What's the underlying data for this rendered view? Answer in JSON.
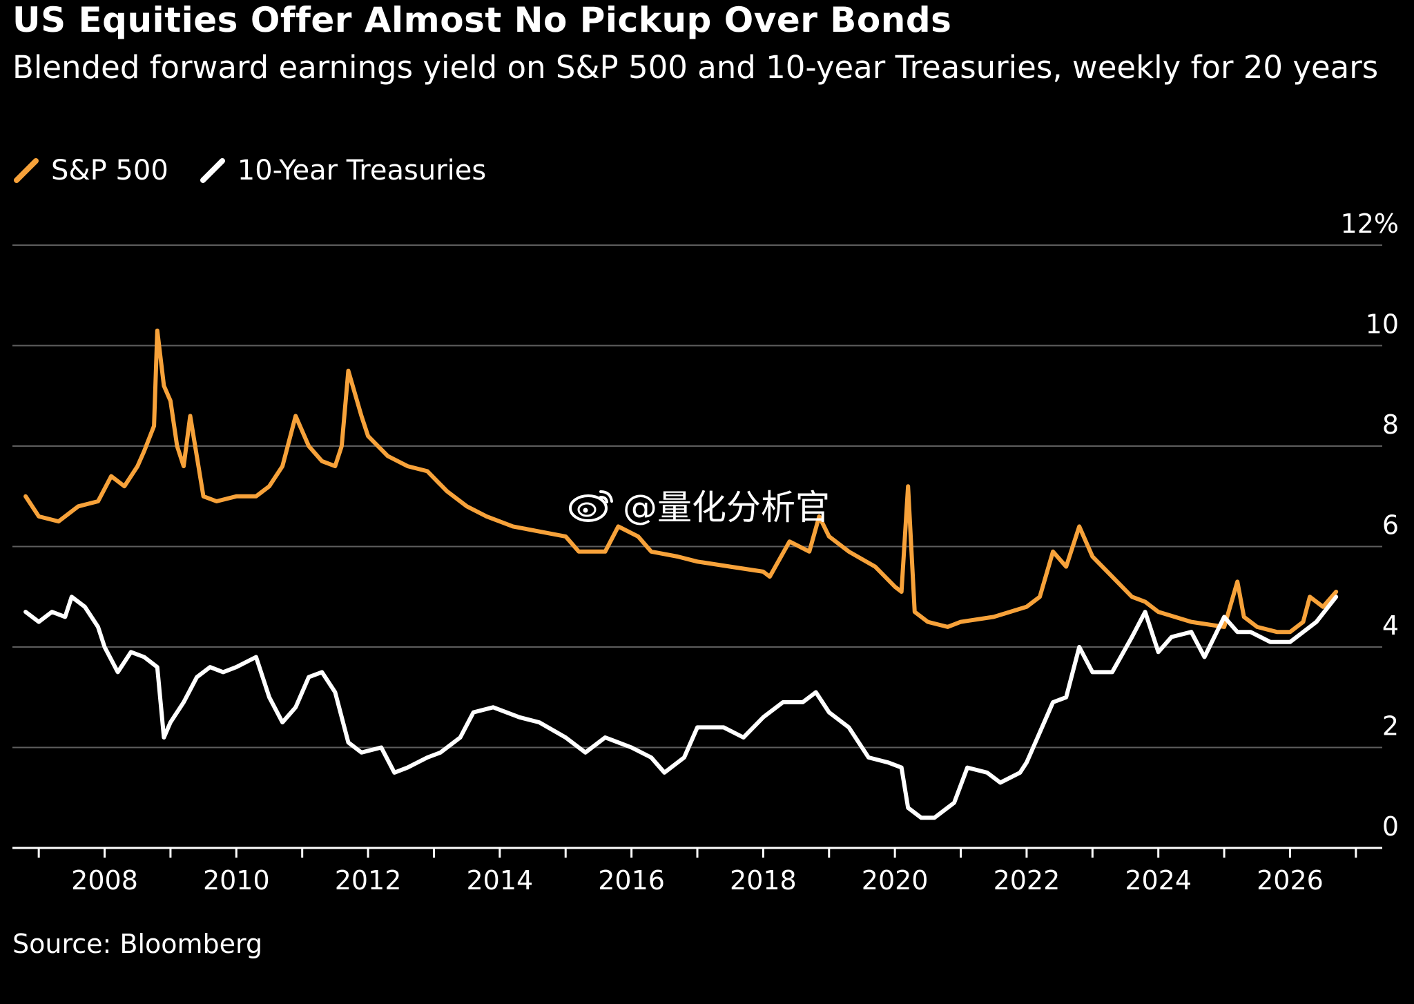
{
  "header": {
    "title": "US Equities Offer Almost No Pickup Over Bonds",
    "subtitle": "Blended forward earnings yield on S&P 500 and 10-year Treasuries, weekly for 20 years"
  },
  "legend": [
    {
      "label": "S&P 500",
      "color": "#f7a23a"
    },
    {
      "label": "10-Year Treasuries",
      "color": "#ffffff"
    }
  ],
  "source": "Source: Bloomberg",
  "watermark": {
    "text": "@量化分析官",
    "icon": "weibo-icon"
  },
  "chart_data": {
    "type": "line",
    "title": "US Equities Offer Almost No Pickup Over Bonds",
    "subtitle": "Blended forward earnings yield on S&P 500 and 10-year Treasuries, weekly for 20 years",
    "xlabel": "",
    "ylabel": "",
    "xlim": [
      2006.6,
      2027.4
    ],
    "ylim": [
      0,
      12
    ],
    "x_ticks": [
      2008,
      2010,
      2012,
      2014,
      2016,
      2018,
      2020,
      2022,
      2024,
      2026
    ],
    "y_ticks": [
      0,
      2,
      4,
      6,
      8,
      10,
      12
    ],
    "y_tick_labels": [
      "0",
      "2",
      "4",
      "6",
      "8",
      "10",
      "12%"
    ],
    "grid": true,
    "legend_position": "top-left",
    "series": [
      {
        "name": "S&P 500",
        "color": "#f7a23a",
        "x": [
          2006.8,
          2007.0,
          2007.3,
          2007.6,
          2007.9,
          2008.1,
          2008.3,
          2008.5,
          2008.6,
          2008.75,
          2008.8,
          2008.9,
          2009.0,
          2009.1,
          2009.2,
          2009.3,
          2009.5,
          2009.7,
          2010.0,
          2010.3,
          2010.5,
          2010.7,
          2010.9,
          2011.1,
          2011.3,
          2011.5,
          2011.6,
          2011.7,
          2011.9,
          2012.0,
          2012.3,
          2012.6,
          2012.9,
          2013.2,
          2013.5,
          2013.8,
          2014.2,
          2014.6,
          2015.0,
          2015.2,
          2015.6,
          2015.8,
          2016.1,
          2016.3,
          2016.7,
          2017.0,
          2017.5,
          2018.0,
          2018.1,
          2018.4,
          2018.7,
          2018.85,
          2019.0,
          2019.3,
          2019.7,
          2020.0,
          2020.1,
          2020.2,
          2020.3,
          2020.5,
          2020.8,
          2021.0,
          2021.5,
          2022.0,
          2022.2,
          2022.4,
          2022.6,
          2022.8,
          2023.0,
          2023.3,
          2023.6,
          2023.8,
          2024.0,
          2024.5,
          2025.0,
          2025.2,
          2025.3,
          2025.5,
          2025.8,
          2026.0,
          2026.2,
          2026.3,
          2026.5,
          2026.7
        ],
        "values": [
          7.0,
          6.6,
          6.5,
          6.8,
          6.9,
          7.4,
          7.2,
          7.6,
          7.9,
          8.4,
          10.3,
          9.2,
          8.9,
          8.0,
          7.6,
          8.6,
          7.0,
          6.9,
          7.0,
          7.0,
          7.2,
          7.6,
          8.6,
          8.0,
          7.7,
          7.6,
          8.0,
          9.5,
          8.6,
          8.2,
          7.8,
          7.6,
          7.5,
          7.1,
          6.8,
          6.6,
          6.4,
          6.3,
          6.2,
          5.9,
          5.9,
          6.4,
          6.2,
          5.9,
          5.8,
          5.7,
          5.6,
          5.5,
          5.4,
          6.1,
          5.9,
          6.6,
          6.2,
          5.9,
          5.6,
          5.2,
          5.1,
          7.2,
          4.7,
          4.5,
          4.4,
          4.5,
          4.6,
          4.8,
          5.0,
          5.9,
          5.6,
          6.4,
          5.8,
          5.4,
          5.0,
          4.9,
          4.7,
          4.5,
          4.4,
          5.3,
          4.6,
          4.4,
          4.3,
          4.3,
          4.5,
          5.0,
          4.8,
          5.1
        ]
      },
      {
        "name": "10-Year Treasuries",
        "color": "#ffffff",
        "x": [
          2006.8,
          2007.0,
          2007.2,
          2007.4,
          2007.5,
          2007.7,
          2007.9,
          2008.0,
          2008.2,
          2008.4,
          2008.6,
          2008.8,
          2008.9,
          2009.0,
          2009.2,
          2009.4,
          2009.6,
          2009.8,
          2010.0,
          2010.3,
          2010.5,
          2010.7,
          2010.9,
          2011.1,
          2011.3,
          2011.5,
          2011.7,
          2011.9,
          2012.2,
          2012.4,
          2012.6,
          2012.9,
          2013.1,
          2013.4,
          2013.6,
          2013.9,
          2014.3,
          2014.6,
          2015.0,
          2015.3,
          2015.6,
          2016.0,
          2016.3,
          2016.5,
          2016.8,
          2017.0,
          2017.4,
          2017.7,
          2018.0,
          2018.3,
          2018.6,
          2018.8,
          2019.0,
          2019.3,
          2019.6,
          2019.9,
          2020.1,
          2020.2,
          2020.4,
          2020.6,
          2020.9,
          2021.1,
          2021.4,
          2021.6,
          2021.9,
          2022.0,
          2022.2,
          2022.4,
          2022.6,
          2022.8,
          2023.0,
          2023.3,
          2023.6,
          2023.8,
          2024.0,
          2024.2,
          2024.5,
          2024.7,
          2025.0,
          2025.2,
          2025.4,
          2025.7,
          2026.0,
          2026.2,
          2026.4,
          2026.7
        ],
        "values": [
          4.7,
          4.5,
          4.7,
          4.6,
          5.0,
          4.8,
          4.4,
          4.0,
          3.5,
          3.9,
          3.8,
          3.6,
          2.2,
          2.5,
          2.9,
          3.4,
          3.6,
          3.5,
          3.6,
          3.8,
          3.0,
          2.5,
          2.8,
          3.4,
          3.5,
          3.1,
          2.1,
          1.9,
          2.0,
          1.5,
          1.6,
          1.8,
          1.9,
          2.2,
          2.7,
          2.8,
          2.6,
          2.5,
          2.2,
          1.9,
          2.2,
          2.0,
          1.8,
          1.5,
          1.8,
          2.4,
          2.4,
          2.2,
          2.6,
          2.9,
          2.9,
          3.1,
          2.7,
          2.4,
          1.8,
          1.7,
          1.6,
          0.8,
          0.6,
          0.6,
          0.9,
          1.6,
          1.5,
          1.3,
          1.5,
          1.7,
          2.3,
          2.9,
          3.0,
          4.0,
          3.5,
          3.5,
          4.2,
          4.7,
          3.9,
          4.2,
          4.3,
          3.8,
          4.6,
          4.3,
          4.3,
          4.1,
          4.1,
          4.3,
          4.5,
          5.0
        ]
      }
    ]
  }
}
